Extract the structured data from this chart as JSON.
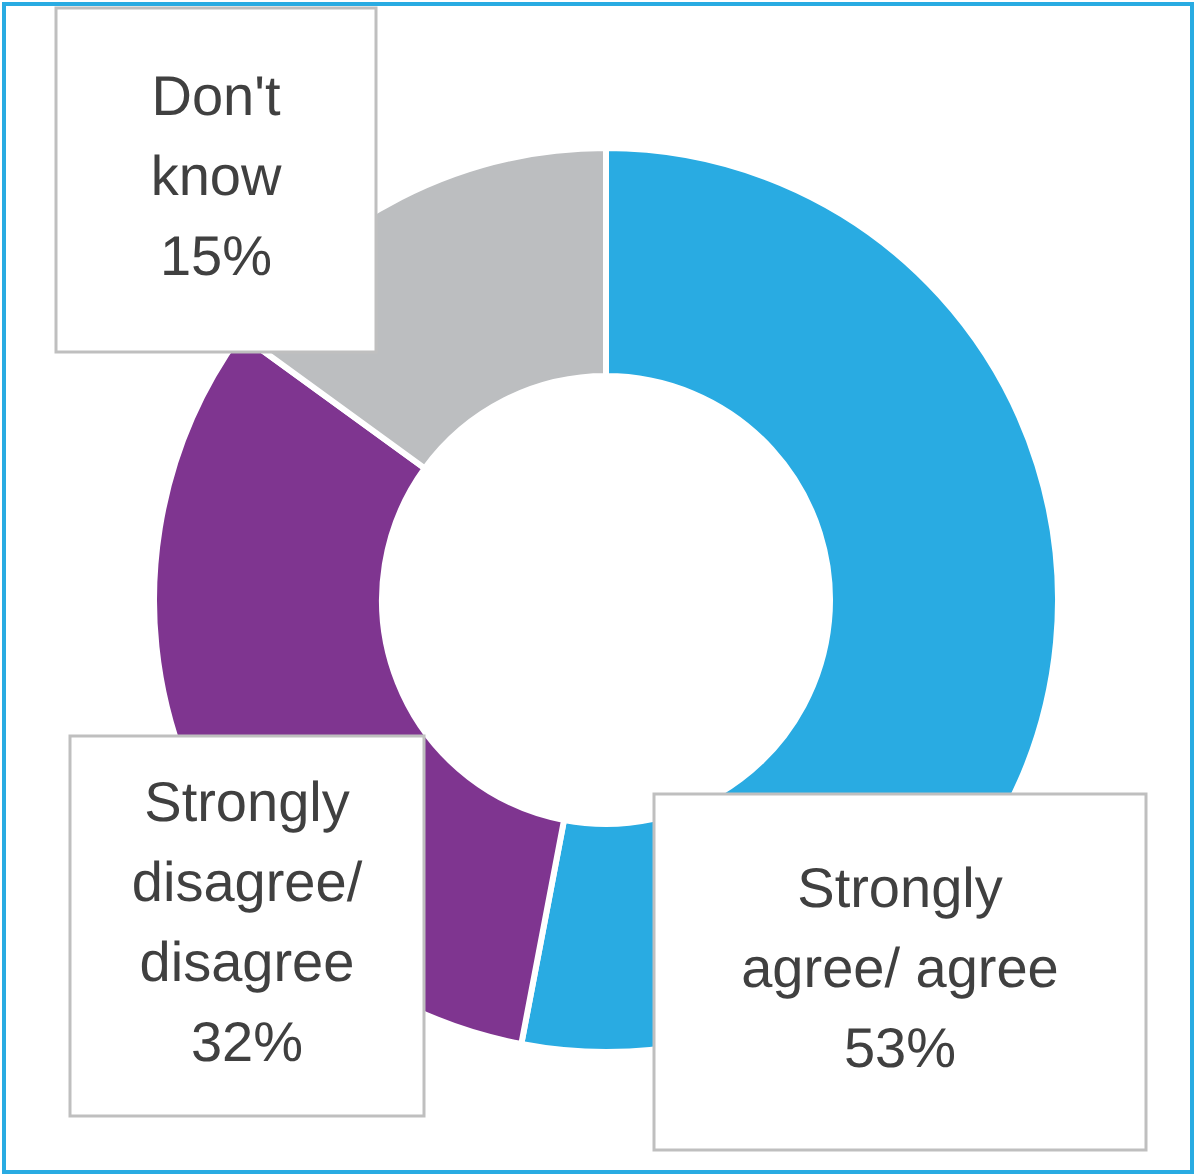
{
  "chart_data": {
    "type": "donut",
    "categories": [
      "Strongly agree/ agree",
      "Strongly disagree/ disagree",
      "Don't know"
    ],
    "values": [
      53,
      32,
      15
    ],
    "colors": [
      "#29abe2",
      "#7f3590",
      "#bcbec0"
    ],
    "value_labels": [
      "53%",
      "32%",
      "15%"
    ]
  }
}
